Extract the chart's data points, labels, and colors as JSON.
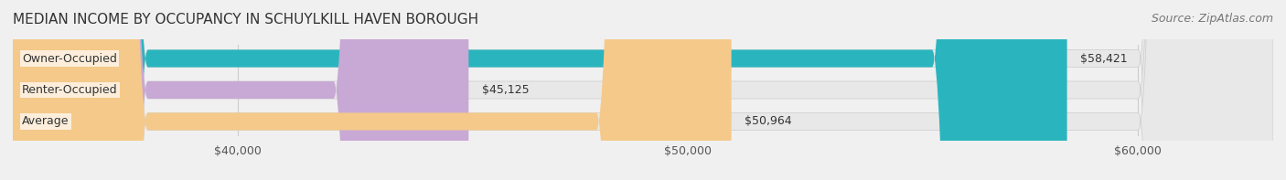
{
  "title": "MEDIAN INCOME BY OCCUPANCY IN SCHUYLKILL HAVEN BOROUGH",
  "source": "Source: ZipAtlas.com",
  "categories": [
    "Owner-Occupied",
    "Renter-Occupied",
    "Average"
  ],
  "values": [
    58421,
    45125,
    50964
  ],
  "bar_colors": [
    "#2ab5be",
    "#c8a8d4",
    "#f5c98a"
  ],
  "bar_labels": [
    "$58,421",
    "$45,125",
    "$50,964"
  ],
  "xlim": [
    35000,
    63000
  ],
  "xticks": [
    40000,
    50000,
    60000
  ],
  "xticklabels": [
    "$40,000",
    "$50,000",
    "$60,000"
  ],
  "background_color": "#f0f0f0",
  "bar_bg_color": "#e8e8e8",
  "title_fontsize": 11,
  "source_fontsize": 9,
  "label_fontsize": 9,
  "tick_fontsize": 9,
  "bar_height": 0.55
}
